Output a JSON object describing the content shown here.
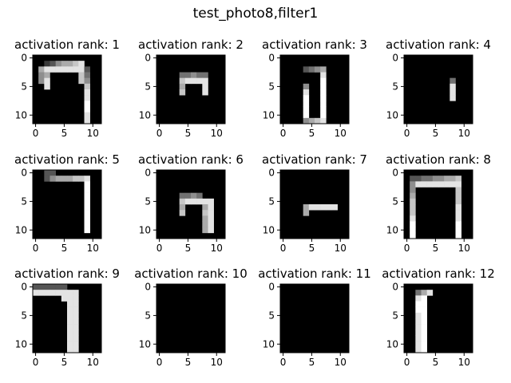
{
  "suptitle": "test_photo8,filter1",
  "chart_data": {
    "type": "heatmap",
    "colormap": "gray",
    "grid_rows": 3,
    "grid_cols": 4,
    "shape": [
      12,
      12
    ],
    "xticks": [
      0,
      5,
      10
    ],
    "yticks": [
      0,
      5,
      10
    ],
    "tick_labels": [
      "0",
      "5",
      "10"
    ],
    "panels": [
      {
        "title": "activation rank: 1",
        "rows": [
          "000000000000",
          "002356678000",
          "068888888300",
          "056000007400",
          "058000007500",
          "008000000700",
          "000000000800",
          "000000000800",
          "000000000900",
          "000000000900",
          "000000000800",
          "000000000800"
        ]
      },
      {
        "title": "activation rank: 2",
        "rows": [
          "000000000000",
          "000000000000",
          "000000000000",
          "000044544000",
          "000078888000",
          "000060008000",
          "000070008000",
          "000000000000",
          "000000000000",
          "000000000000",
          "000000000000",
          "000000000000"
        ]
      },
      {
        "title": "activation rank: 3",
        "rows": [
          "000000000000",
          "000000000000",
          "000034560000",
          "000000080000",
          "000000090000",
          "000050090000",
          "000080090000",
          "000090090000",
          "000090090000",
          "000090090000",
          "000090090000",
          "000056780000"
        ]
      },
      {
        "title": "activation rank: 4",
        "rows": [
          "000000000000",
          "000000000000",
          "000000000000",
          "000000000000",
          "000000004000",
          "000000008000",
          "000000008000",
          "000000008000",
          "000000000000",
          "000000000000",
          "000000000000",
          "000000000000"
        ]
      },
      {
        "title": "activation rank: 5",
        "rows": [
          "003300000000",
          "003566677800",
          "000000000900",
          "000000000900",
          "000000000900",
          "000000000900",
          "000000000900",
          "000000000900",
          "000000000900",
          "000000000900",
          "000000000900",
          "000000000000"
        ]
      },
      {
        "title": "activation rank: 6",
        "rows": [
          "000000000000",
          "000000000000",
          "000000000000",
          "000000000000",
          "000044540000",
          "000078888800",
          "000060006800",
          "000070007800",
          "000000006800",
          "000000006800",
          "000000006800",
          "000000000000"
        ]
      },
      {
        "title": "activation rank: 7",
        "rows": [
          "000000000000",
          "000000000000",
          "000000000000",
          "000000000000",
          "000000000000",
          "000000000000",
          "000068888800",
          "000060000000",
          "000000000000",
          "000000000000",
          "000000000000",
          "000000000000"
        ]
      },
      {
        "title": "activation rank: 8",
        "rows": [
          "000000000000",
          "033445566700",
          "058888888800",
          "050000000700",
          "060000000700",
          "070000000700",
          "070000000800",
          "070000000800",
          "080000000800",
          "090000000900",
          "090000000900",
          "090000000900"
        ]
      },
      {
        "title": "activation rank: 9",
        "rows": [
          "333333000000",
          "888888880000",
          "000008880000",
          "000000880000",
          "000000880000",
          "000000880000",
          "000000880000",
          "000000880000",
          "000000880000",
          "000000880000",
          "000000880000",
          "000000880000"
        ]
      },
      {
        "title": "activation rank: 10",
        "rows": [
          "000000000000",
          "000000000000",
          "000000000000",
          "000000000000",
          "000000000000",
          "000000000000",
          "000000000000",
          "000000000000",
          "000000000000",
          "000000000000",
          "000000000000",
          "000000000000"
        ]
      },
      {
        "title": "activation rank: 11",
        "rows": [
          "000000000000",
          "000000000000",
          "000000000000",
          "000000000000",
          "000000000000",
          "000000000000",
          "000000000000",
          "000000000000",
          "000000000000",
          "000000000000",
          "000000000000",
          "000000000000"
        ]
      },
      {
        "title": "activation rank: 12",
        "rows": [
          "000000000000",
          "004680000000",
          "008900000000",
          "009900000000",
          "009900000000",
          "008900000000",
          "008900000000",
          "008900000000",
          "008900000000",
          "008900000000",
          "008900000000",
          "008900000000"
        ]
      }
    ]
  }
}
